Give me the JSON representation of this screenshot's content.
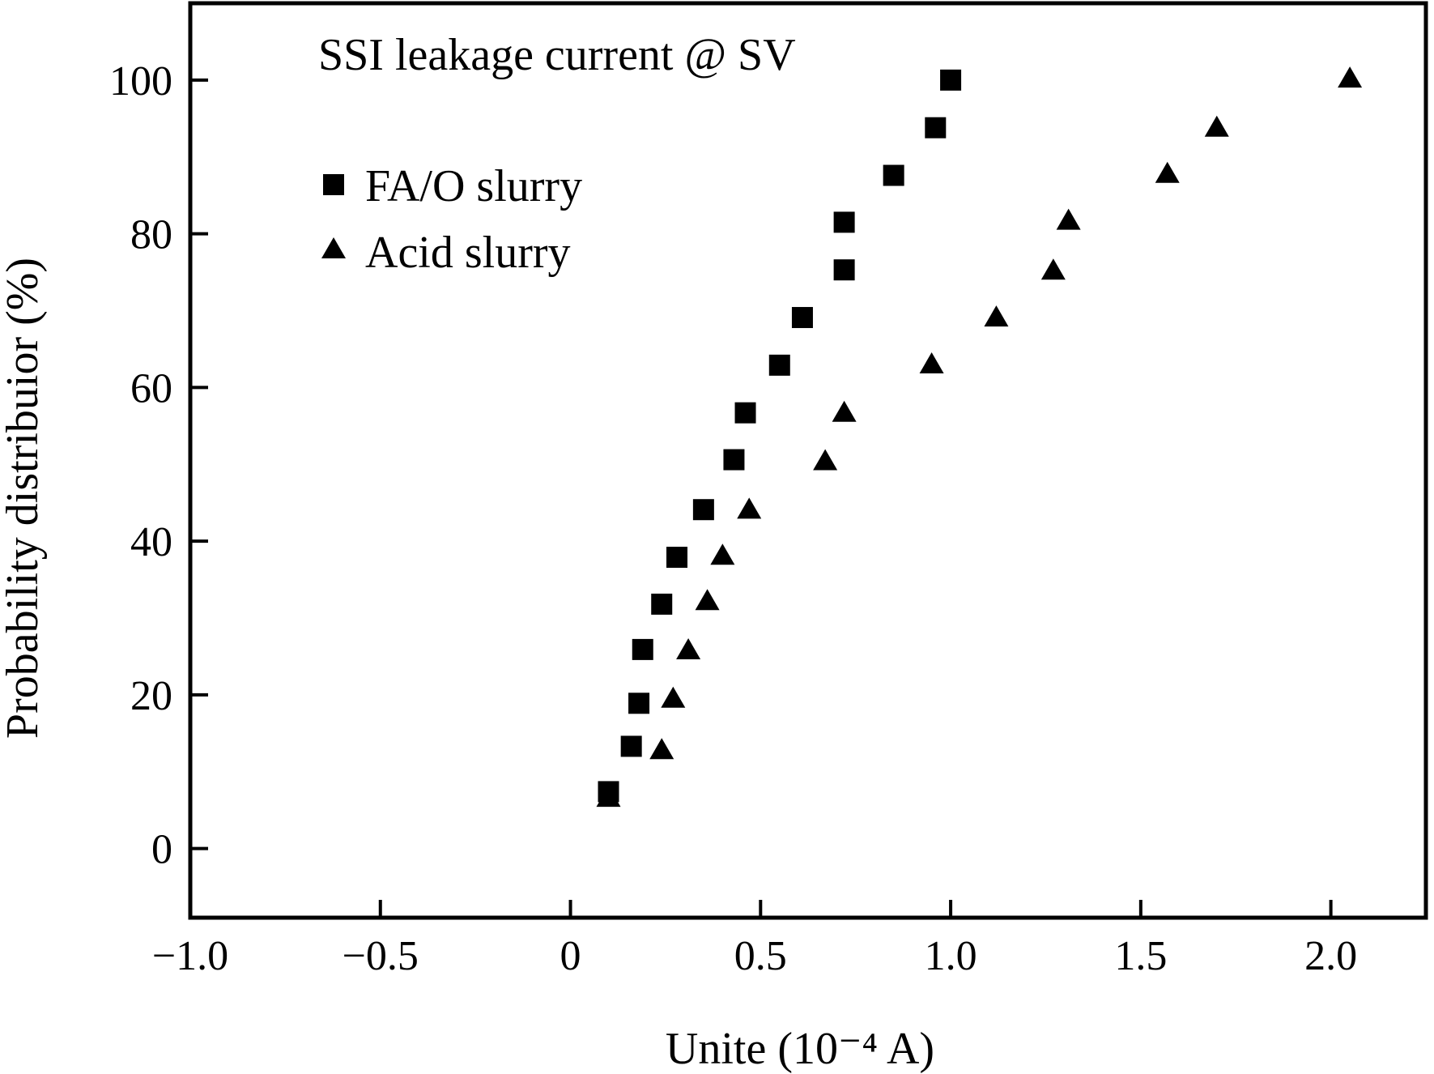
{
  "chart_data": {
    "type": "scatter",
    "title": "",
    "annotation": "SSI leakage current @ SV",
    "xlabel": "Unite (10⁻⁴ A)",
    "ylabel": "Probability distribuior (%)",
    "xlim": [
      -1.0,
      2.25
    ],
    "ylim": [
      -9,
      110
    ],
    "x_ticks": [
      -1.0,
      -0.5,
      0,
      0.5,
      1.0,
      1.5,
      2.0
    ],
    "x_tick_labels": [
      "−1.0",
      "−0.5",
      "0",
      "0.5",
      "1.0",
      "1.5",
      "2.0"
    ],
    "y_ticks": [
      0,
      20,
      40,
      60,
      80,
      100
    ],
    "y_tick_labels": [
      "0",
      "20",
      "40",
      "60",
      "80",
      "100"
    ],
    "grid": false,
    "legend_position": "top-left",
    "series": [
      {
        "name": "FA/O slurry",
        "marker": "square",
        "color": "#000000",
        "points": [
          {
            "x": 0.1,
            "y": 7.4
          },
          {
            "x": 0.16,
            "y": 13.3
          },
          {
            "x": 0.18,
            "y": 18.9
          },
          {
            "x": 0.19,
            "y": 25.9
          },
          {
            "x": 0.24,
            "y": 31.8
          },
          {
            "x": 0.28,
            "y": 37.9
          },
          {
            "x": 0.35,
            "y": 44.1
          },
          {
            "x": 0.43,
            "y": 50.6
          },
          {
            "x": 0.46,
            "y": 56.7
          },
          {
            "x": 0.55,
            "y": 62.9
          },
          {
            "x": 0.61,
            "y": 69.1
          },
          {
            "x": 0.72,
            "y": 75.3
          },
          {
            "x": 0.72,
            "y": 81.5
          },
          {
            "x": 0.85,
            "y": 87.6
          },
          {
            "x": 0.96,
            "y": 93.8
          },
          {
            "x": 1.0,
            "y": 100.0
          }
        ]
      },
      {
        "name": "Acid slurry",
        "marker": "triangle",
        "color": "#000000",
        "points": [
          {
            "x": 0.1,
            "y": 6.8
          },
          {
            "x": 0.24,
            "y": 13.0
          },
          {
            "x": 0.27,
            "y": 19.7
          },
          {
            "x": 0.31,
            "y": 26.0
          },
          {
            "x": 0.36,
            "y": 32.4
          },
          {
            "x": 0.4,
            "y": 38.3
          },
          {
            "x": 0.47,
            "y": 44.3
          },
          {
            "x": 0.67,
            "y": 50.6
          },
          {
            "x": 0.72,
            "y": 56.9
          },
          {
            "x": 0.95,
            "y": 63.2
          },
          {
            "x": 1.12,
            "y": 69.3
          },
          {
            "x": 1.27,
            "y": 75.4
          },
          {
            "x": 1.31,
            "y": 81.9
          },
          {
            "x": 1.57,
            "y": 88.0
          },
          {
            "x": 1.7,
            "y": 94.0
          },
          {
            "x": 2.05,
            "y": 100.4
          }
        ]
      }
    ]
  }
}
